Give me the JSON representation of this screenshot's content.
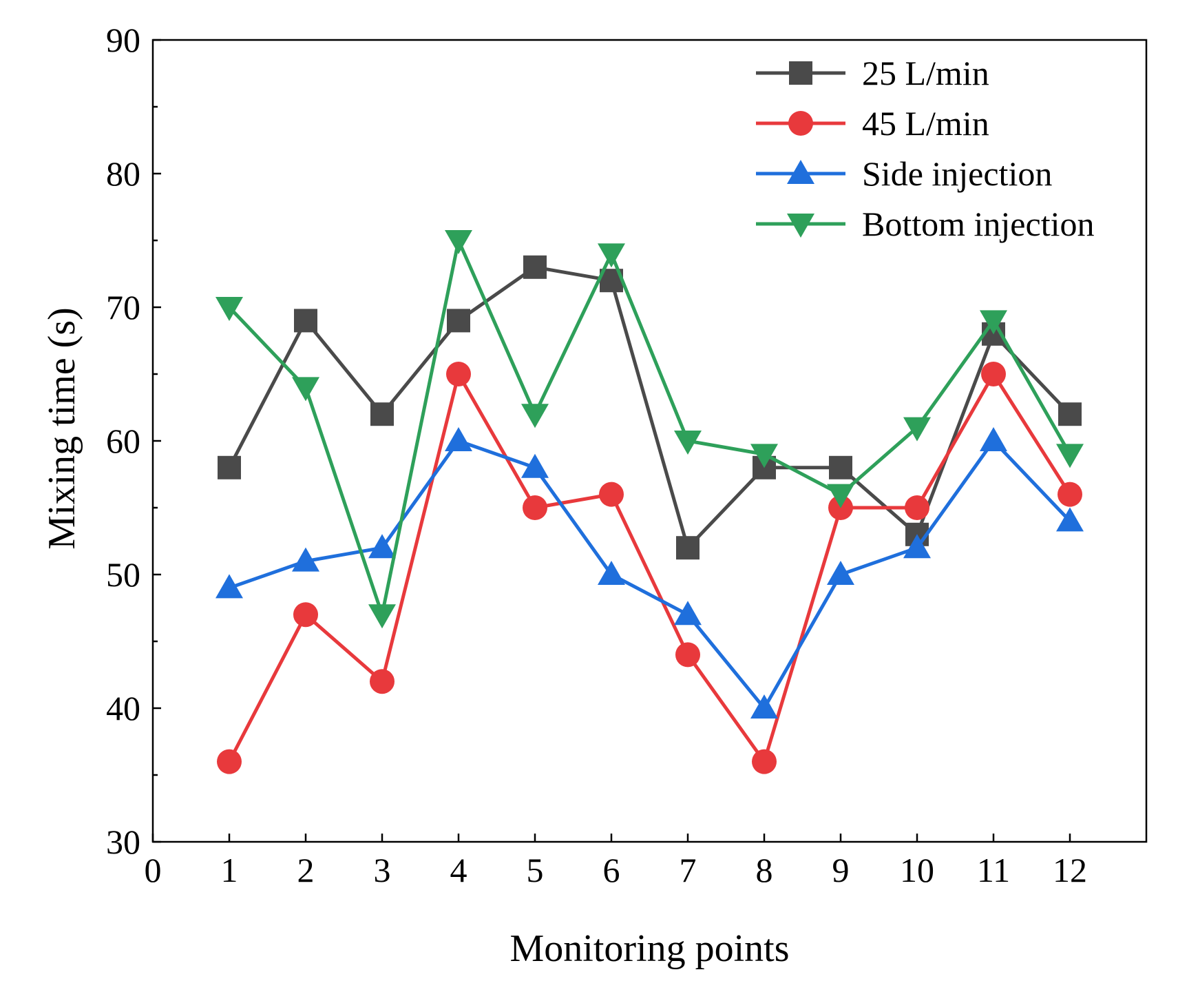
{
  "chart_data": {
    "type": "line",
    "title": "",
    "xlabel": "Monitoring points",
    "ylabel": "Mixing time (s)",
    "xlim": [
      0,
      13
    ],
    "ylim": [
      30,
      90
    ],
    "x_ticks": [
      0,
      1,
      2,
      3,
      4,
      5,
      6,
      7,
      8,
      9,
      10,
      11,
      12
    ],
    "y_ticks": [
      30,
      40,
      50,
      60,
      70,
      80,
      90
    ],
    "x": [
      1,
      2,
      3,
      4,
      5,
      6,
      7,
      8,
      9,
      10,
      11,
      12
    ],
    "legend_position": "top-right",
    "series": [
      {
        "name": "25 L/min",
        "color": "#4a4a4a",
        "marker": "square",
        "values": [
          58,
          69,
          62,
          69,
          73,
          72,
          52,
          58,
          58,
          53,
          68,
          62
        ]
      },
      {
        "name": "45 L/min",
        "color": "#e8393c",
        "marker": "circle",
        "values": [
          36,
          47,
          42,
          65,
          55,
          56,
          44,
          36,
          55,
          55,
          65,
          56
        ]
      },
      {
        "name": "Side injection",
        "color": "#1f6fdc",
        "marker": "triangle-up",
        "values": [
          49,
          51,
          52,
          60,
          58,
          50,
          47,
          40,
          50,
          52,
          60,
          54
        ]
      },
      {
        "name": "Bottom injection",
        "color": "#2ea05a",
        "marker": "triangle-down",
        "values": [
          70,
          64,
          47,
          75,
          62,
          74,
          60,
          59,
          56,
          61,
          69,
          59
        ]
      }
    ]
  }
}
